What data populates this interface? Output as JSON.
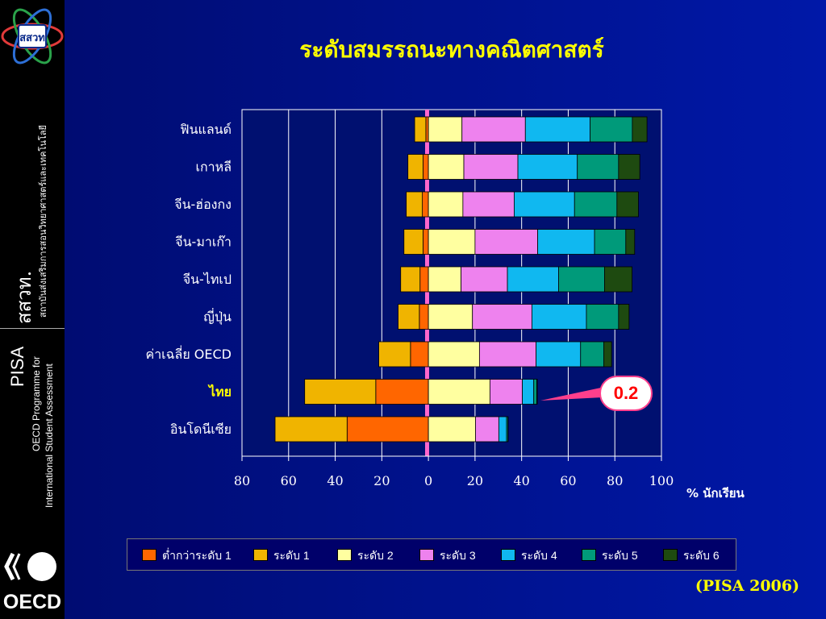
{
  "slide": {
    "title": "ระดับสมรรถนะทางคณิตศาสตร์",
    "source": "(PISA 2006)",
    "logo_text": "สสวท",
    "sidebar": {
      "org_short": "สสวท.",
      "org_full": "สถาบันส่งเสริมการสอนวิทยาศาสตร์และเทคโนโลยี",
      "pisa": "PISA",
      "pisa_line1": "OECD Programme for",
      "pisa_line2": "International Student Assessment",
      "oecd": "OECD"
    },
    "callout": "0.2",
    "unit_label": "% นักเรียน"
  },
  "colors": {
    "background": "#0018a8",
    "title": "#ffff00",
    "highlight_label": "#ffff00",
    "callout_border": "#ff3f8c",
    "zero_line": "#ff66cc"
  },
  "chart_data": {
    "type": "bar",
    "orientation": "horizontal-diverging",
    "title": "ระดับสมรรถนะทางคณิตศาสตร์",
    "xlabel": "% นักเรียน",
    "xlim": [
      -80,
      100
    ],
    "xticks": [
      "80",
      "60",
      "40",
      "20",
      "0",
      "20",
      "40",
      "60",
      "80",
      "100"
    ],
    "grid": true,
    "legend_position": "bottom",
    "categories": [
      "ฟินแลนด์",
      "เกาหลี",
      "จีน-ฮ่องกง",
      "จีน-มาเก๊า",
      "จีน-ไทเป",
      "ญี่ปุ่น",
      "ค่าเฉลี่ย OECD",
      "ไทย",
      "อินโดนีเซีย"
    ],
    "highlight_category": "ไทย",
    "series": [
      {
        "name": "ต่ำกว่าระดับ 1",
        "color": "#ff6600",
        "side": "negative",
        "values": [
          1.1,
          2.3,
          2.6,
          2.3,
          3.6,
          3.9,
          7.7,
          22.6,
          34.9
        ]
      },
      {
        "name": "ระดับ 1",
        "color": "#f0b400",
        "side": "negative",
        "values": [
          4.8,
          6.5,
          6.9,
          8.2,
          8.3,
          9.1,
          13.6,
          30.5,
          30.9
        ]
      },
      {
        "name": "ระดับ 2",
        "color": "#ffffa0",
        "side": "positive",
        "values": [
          14.4,
          15.2,
          14.8,
          20.0,
          14.0,
          18.9,
          21.9,
          26.4,
          20.2
        ]
      },
      {
        "name": "ระดับ 3",
        "color": "#ee82ee",
        "side": "positive",
        "values": [
          27.2,
          23.2,
          22.0,
          26.9,
          19.9,
          25.5,
          24.3,
          13.9,
          10.0
        ]
      },
      {
        "name": "ระดับ 4",
        "color": "#10b8f0",
        "side": "positive",
        "values": [
          27.8,
          25.5,
          25.9,
          24.4,
          22.0,
          23.4,
          19.1,
          4.9,
          3.3
        ]
      },
      {
        "name": "ระดับ 5",
        "color": "#009a7a",
        "side": "positive",
        "values": [
          18.1,
          17.7,
          18.2,
          13.4,
          19.7,
          13.8,
          10.0,
          1.3,
          0.6
        ]
      },
      {
        "name": "ระดับ 6",
        "color": "#1e4a10",
        "side": "positive",
        "values": [
          6.3,
          9.1,
          9.2,
          3.8,
          11.8,
          4.5,
          3.3,
          0.2,
          0.1
        ]
      }
    ]
  }
}
